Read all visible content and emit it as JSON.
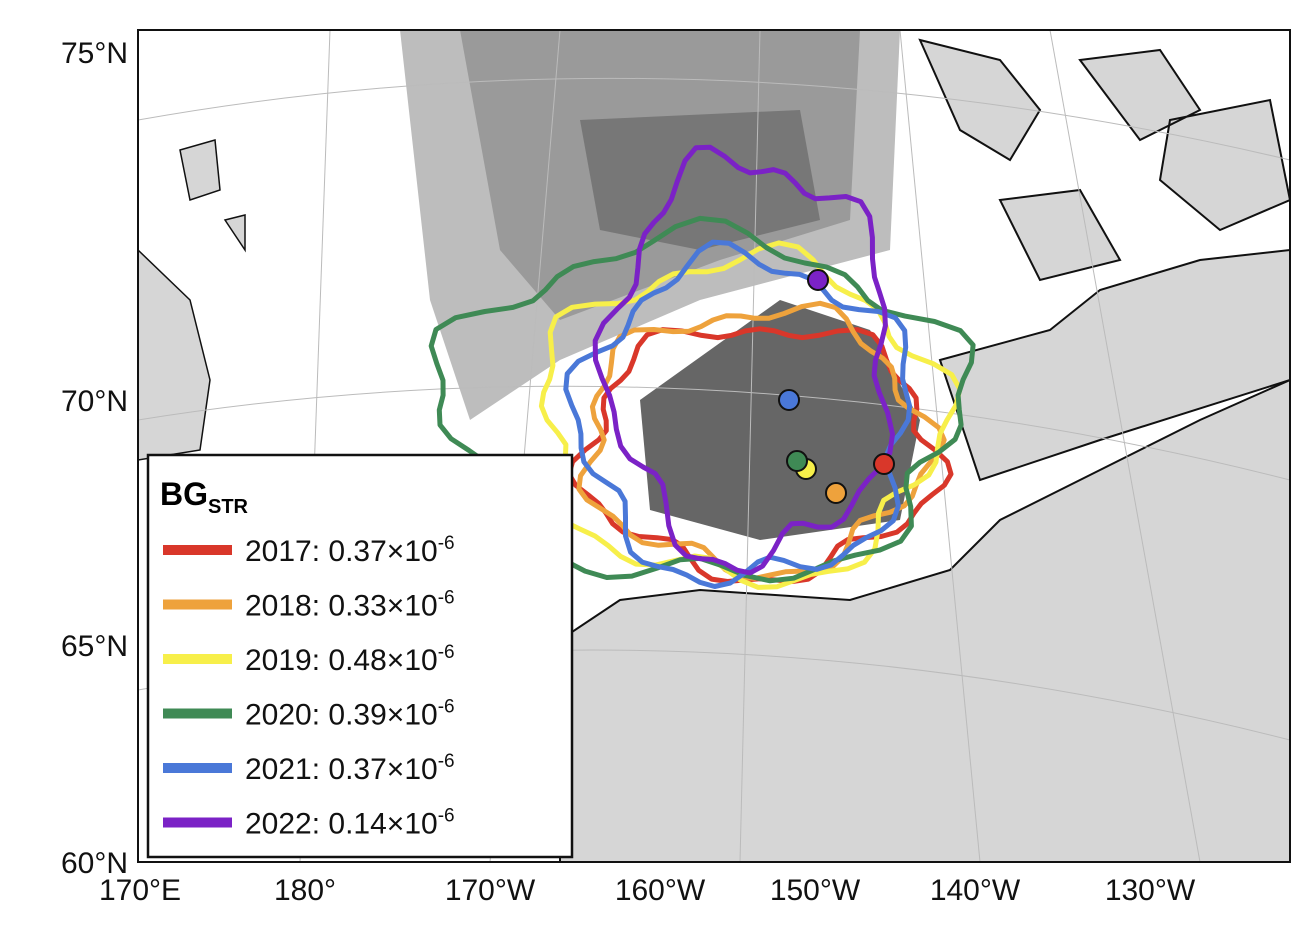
{
  "map": {
    "lat_labels": [
      "75°N",
      "70°N",
      "65°N",
      "60°N"
    ],
    "lon_labels": [
      "170°E",
      "180°",
      "170°W",
      "160°W",
      "150°W",
      "140°W",
      "130°W"
    ]
  },
  "legend": {
    "title": "BG",
    "title_sub": "STR",
    "entries": [
      {
        "label": "2017: 0.37×10",
        "exponent": "-6",
        "color": "#d9372a"
      },
      {
        "label": "2018: 0.33×10",
        "exponent": "-6",
        "color": "#eea23c"
      },
      {
        "label": "2019: 0.48×10",
        "exponent": "-6",
        "color": "#f7ef4a"
      },
      {
        "label": "2020: 0.39×10",
        "exponent": "-6",
        "color": "#3f8a55"
      },
      {
        "label": "2021: 0.37×10",
        "exponent": "-6",
        "color": "#4a78d8"
      },
      {
        "label": "2022: 0.14×10",
        "exponent": "-6",
        "color": "#7b22c6"
      }
    ]
  }
}
